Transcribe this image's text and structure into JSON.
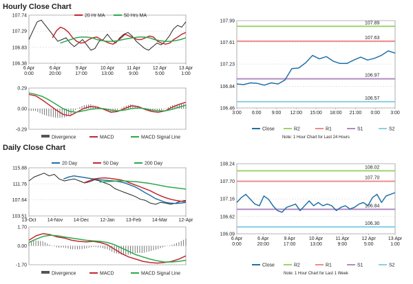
{
  "sections": {
    "hourly_title": "Hourly Close Chart",
    "daily_title": "Daily Close Chart"
  },
  "colors": {
    "close": "#1f6fa6",
    "price": "#222222",
    "ma20": "#c0272d",
    "ma50h": "#2aa84a",
    "ma50d": "#c0272d",
    "ma20d": "#1f6fa6",
    "ma200d": "#2aa84a",
    "macd": "#c0272d",
    "signal": "#2aa84a",
    "divergence": "#555555",
    "r2": "#9ed36a",
    "r1": "#f08a8a",
    "s1": "#b08ac0",
    "s2": "#88d0e6",
    "grid": "#cccccc",
    "frame": "#999999"
  },
  "chart_data": [
    {
      "id": "hourly_price",
      "type": "line",
      "legend": [
        "20 Hr MA",
        "50 Hrs MA"
      ],
      "yticks": [
        "107.74",
        "107.29",
        "106.83",
        "106.38"
      ],
      "ylim": [
        106.38,
        107.74
      ],
      "xticks": [
        "6 Apr\n0:00",
        "6 Apr\n20:00",
        "9 Apr\n17:00",
        "10 Apr\n13:00",
        "11 Apr\n9:00",
        "12 Apr\n5:00",
        "13 Apr\n1:00"
      ],
      "series": [
        {
          "key": "price",
          "values": [
            107.05,
            107.3,
            107.55,
            107.6,
            107.45,
            107.3,
            107.15,
            107.0,
            107.05,
            107.1,
            106.95,
            106.85,
            106.95,
            107.05,
            106.9,
            106.75,
            106.8,
            107.0,
            107.05,
            107.2,
            107.05,
            106.95,
            107.1,
            107.2,
            107.25,
            107.15,
            107.0,
            106.9,
            106.8,
            106.75,
            106.85,
            106.95,
            106.9,
            107.0,
            107.15,
            107.35,
            107.45,
            107.4,
            107.55
          ]
        },
        {
          "key": "ma20",
          "values": [
            107.1,
            107.3,
            107.4,
            107.35,
            107.25,
            107.1,
            107.0,
            106.95,
            106.97,
            107.05,
            107.1,
            107.12,
            107.05,
            107.0,
            106.95,
            106.92,
            107.0,
            107.1,
            107.2,
            107.15,
            107.1,
            107.05,
            107.05,
            107.1,
            107.15,
            107.12,
            107.0,
            106.95,
            106.92,
            106.95,
            107.05,
            107.12,
            107.2,
            107.25
          ]
        },
        {
          "key": "ma50h",
          "values": [
            106.95,
            107.0,
            107.05,
            107.1,
            107.12,
            107.12,
            107.1,
            107.05,
            107.02,
            107.0,
            107.0,
            107.02,
            107.05,
            107.08,
            107.1,
            107.12,
            107.12,
            107.1,
            107.05,
            107.02,
            107.0,
            107.0,
            107.02,
            107.05,
            107.1
          ]
        }
      ]
    },
    {
      "id": "hourly_macd",
      "type": "line",
      "legend": [
        "Divergence",
        "MACD",
        "MACD Signal Line"
      ],
      "yticks": [
        "0.29",
        "0.00",
        "-0.29"
      ],
      "ylim": [
        -0.29,
        0.29
      ],
      "series": [
        {
          "key": "macd",
          "values": [
            0.2,
            0.18,
            0.12,
            0.05,
            -0.02,
            -0.08,
            -0.1,
            -0.05,
            0.0,
            0.03,
            0.02,
            -0.01,
            -0.05,
            -0.04,
            0.0,
            0.04,
            0.03,
            -0.01,
            -0.04,
            -0.05,
            -0.03,
            0.02,
            0.06,
            0.09
          ]
        },
        {
          "key": "signal",
          "values": [
            0.22,
            0.2,
            0.17,
            0.12,
            0.06,
            0.0,
            -0.04,
            -0.05,
            -0.03,
            -0.01,
            0.0,
            0.0,
            -0.02,
            -0.03,
            -0.02,
            0.0,
            0.01,
            0.0,
            -0.02,
            -0.03,
            -0.03,
            -0.01,
            0.02,
            0.05
          ]
        }
      ]
    },
    {
      "id": "hourly_pivot",
      "type": "line",
      "yticks": [
        "107.99",
        "107.61",
        "107.23",
        "106.84",
        "106.46"
      ],
      "ylim": [
        106.46,
        107.99
      ],
      "xticks": [
        "3:00",
        "6:00",
        "9:00",
        "12:00",
        "15:00",
        "18:00",
        "21:00",
        "0:00",
        "3:00"
      ],
      "levels": [
        {
          "key": "R2",
          "value": 107.89,
          "label": "107.89"
        },
        {
          "key": "R1",
          "value": 107.63,
          "label": "107.63"
        },
        {
          "key": "S1",
          "value": 106.97,
          "label": "106.97"
        },
        {
          "key": "S2",
          "value": 106.57,
          "label": "106.57"
        }
      ],
      "close": [
        106.88,
        106.87,
        106.9,
        106.89,
        106.86,
        106.9,
        106.88,
        106.95,
        107.15,
        107.16,
        107.25,
        107.38,
        107.32,
        107.36,
        107.28,
        107.24,
        107.24,
        107.3,
        107.35,
        107.3,
        107.33,
        107.38,
        107.46,
        107.42
      ],
      "legend": [
        "Close",
        "R2",
        "R1",
        "S1",
        "S2"
      ],
      "note": "Note: 1 Hour Chart for Last 24 Hours"
    },
    {
      "id": "daily_price",
      "type": "line",
      "legend": [
        "20 Day",
        "50 Day",
        "200 Day"
      ],
      "yticks": [
        "115.88",
        "111.76",
        "107.64",
        "103.51"
      ],
      "ylim": [
        103.51,
        115.88
      ],
      "xticks": [
        "13-Oct",
        "14-Nov",
        "14-Dec",
        "12-Jan",
        "13-Feb",
        "14-Mar",
        "12-Apr"
      ],
      "series": [
        {
          "key": "price",
          "values": [
            112.5,
            113.5,
            114.0,
            114.5,
            113.8,
            114.2,
            113.0,
            112.5,
            112.8,
            113.0,
            112.5,
            112.0,
            112.3,
            112.8,
            112.5,
            112.0,
            111.5,
            110.5,
            110.0,
            109.5,
            109.0,
            108.5,
            107.8,
            107.5,
            106.8,
            106.5,
            107.0,
            106.8,
            106.5,
            106.8,
            107.3,
            107.5
          ]
        },
        {
          "key": "ma20d",
          "values": [
            113.0,
            113.5,
            113.8,
            113.6,
            113.4,
            113.2,
            113.0,
            112.8,
            112.7,
            112.6,
            112.5,
            112.3,
            112.0,
            111.5,
            111.0,
            110.3,
            109.5,
            108.8,
            108.0,
            107.5,
            107.0,
            106.8,
            106.7,
            106.8,
            107.0
          ]
        },
        {
          "key": "ma50d",
          "values": [
            112.0,
            112.5,
            113.0,
            113.2,
            113.3,
            113.2,
            113.0,
            112.8,
            112.5,
            112.0,
            111.5,
            111.0,
            110.5,
            110.0,
            109.3,
            108.7,
            108.2,
            107.8,
            107.5,
            107.3,
            107.2
          ]
        },
        {
          "key": "ma200d",
          "values": [
            112.2,
            112.3,
            112.4,
            112.5,
            112.5,
            112.4,
            112.3,
            112.1,
            111.9,
            111.6,
            111.3,
            111.0,
            110.8,
            110.6,
            110.4
          ]
        }
      ]
    },
    {
      "id": "daily_macd",
      "type": "line",
      "legend": [
        "Divergence",
        "MACD",
        "MACD Signal Line"
      ],
      "yticks": [
        "1.70",
        "0.00",
        "-1.70"
      ],
      "ylim": [
        -1.7,
        1.7
      ],
      "series": [
        {
          "key": "macd",
          "values": [
            0.5,
            0.9,
            1.1,
            1.0,
            0.8,
            0.7,
            0.5,
            0.4,
            0.35,
            0.4,
            0.3,
            0.1,
            -0.3,
            -0.7,
            -1.0,
            -1.2,
            -1.4,
            -1.5,
            -1.55,
            -1.5,
            -1.4,
            -1.2,
            -0.9
          ]
        },
        {
          "key": "signal",
          "values": [
            0.3,
            0.6,
            0.85,
            0.95,
            0.9,
            0.8,
            0.7,
            0.6,
            0.5,
            0.45,
            0.4,
            0.3,
            0.1,
            -0.2,
            -0.5,
            -0.8,
            -1.0,
            -1.2,
            -1.35,
            -1.45,
            -1.45,
            -1.4,
            -1.3
          ]
        }
      ]
    },
    {
      "id": "daily_pivot",
      "type": "line",
      "yticks": [
        "108.24",
        "107.70",
        "107.16",
        "106.62",
        "106.09"
      ],
      "ylim": [
        106.09,
        108.24
      ],
      "xticks": [
        "6 Apr\n0:00",
        "6 Apr\n20:00",
        "9 Apr\n17:00",
        "10 Apr\n13:00",
        "11 Apr\n9:00",
        "12 Apr\n5:00",
        "13 Apr\n1:00"
      ],
      "levels": [
        {
          "key": "R2",
          "value": 108.02,
          "label": "108.02"
        },
        {
          "key": "R1",
          "value": 107.7,
          "label": "107.70"
        },
        {
          "key": "S1",
          "value": 106.84,
          "label": "106.84"
        },
        {
          "key": "S2",
          "value": 106.3,
          "label": "106.30"
        }
      ],
      "close": [
        107.05,
        107.2,
        107.3,
        107.15,
        107.0,
        106.95,
        107.25,
        107.15,
        106.95,
        106.8,
        106.75,
        106.9,
        106.95,
        107.0,
        106.8,
        106.95,
        107.1,
        106.95,
        107.05,
        106.95,
        107.0,
        106.95,
        106.8,
        106.9,
        106.95,
        106.85,
        106.9,
        107.0,
        107.05,
        106.95,
        107.2,
        107.3,
        107.05,
        107.25,
        107.3,
        107.35
      ],
      "legend": [
        "Close",
        "R2",
        "R1",
        "S1",
        "S2"
      ],
      "note": "Note: 1 Hour Chart for Last 1 Week"
    }
  ]
}
